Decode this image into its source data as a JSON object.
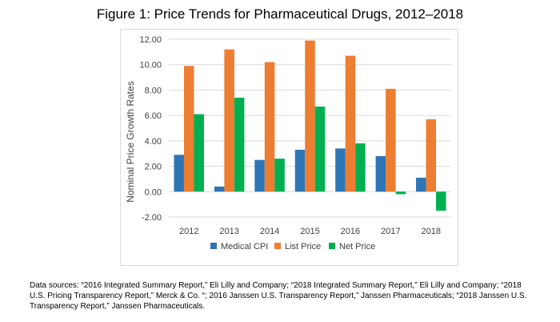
{
  "chart_data": {
    "type": "bar",
    "title": "Figure 1: Price Trends for Pharmaceutical Drugs, 2012–2018",
    "xlabel": "",
    "ylabel": "Nominal Price Growth Rates",
    "ylim": [
      -2,
      12
    ],
    "yticks": [
      "-2.00",
      "0.00",
      "2.00",
      "4.00",
      "6.00",
      "8.00",
      "10.00",
      "12.00"
    ],
    "grid": true,
    "legend_position": "bottom",
    "categories": [
      "2012",
      "2013",
      "2014",
      "2015",
      "2016",
      "2017",
      "2018"
    ],
    "series": [
      {
        "name": "Medical CPI",
        "color": "#2e75b6",
        "values": [
          2.9,
          0.4,
          2.5,
          3.3,
          3.4,
          2.8,
          1.1
        ]
      },
      {
        "name": "List Price",
        "color": "#ed7d31",
        "values": [
          9.9,
          11.2,
          10.2,
          11.9,
          10.7,
          8.1,
          5.7
        ]
      },
      {
        "name": "Net Price",
        "color": "#00b050",
        "values": [
          6.1,
          7.4,
          2.6,
          6.7,
          3.8,
          -0.2,
          -1.5
        ]
      }
    ]
  },
  "source_note": "Data sources: “2016 Integrated Summary Report,” Eli Lilly and Company; “2018 Integrated Summary Report,” Eli Lilly and Company; “2018 U.S. Pricing Transparency Report,” Merck & Co. “; 2016 Janssen U.S. Transparency Report,” Janssen Pharmaceuticals; “2018 Janssen U.S. Transparency Report,” Janssen Pharmaceuticals."
}
